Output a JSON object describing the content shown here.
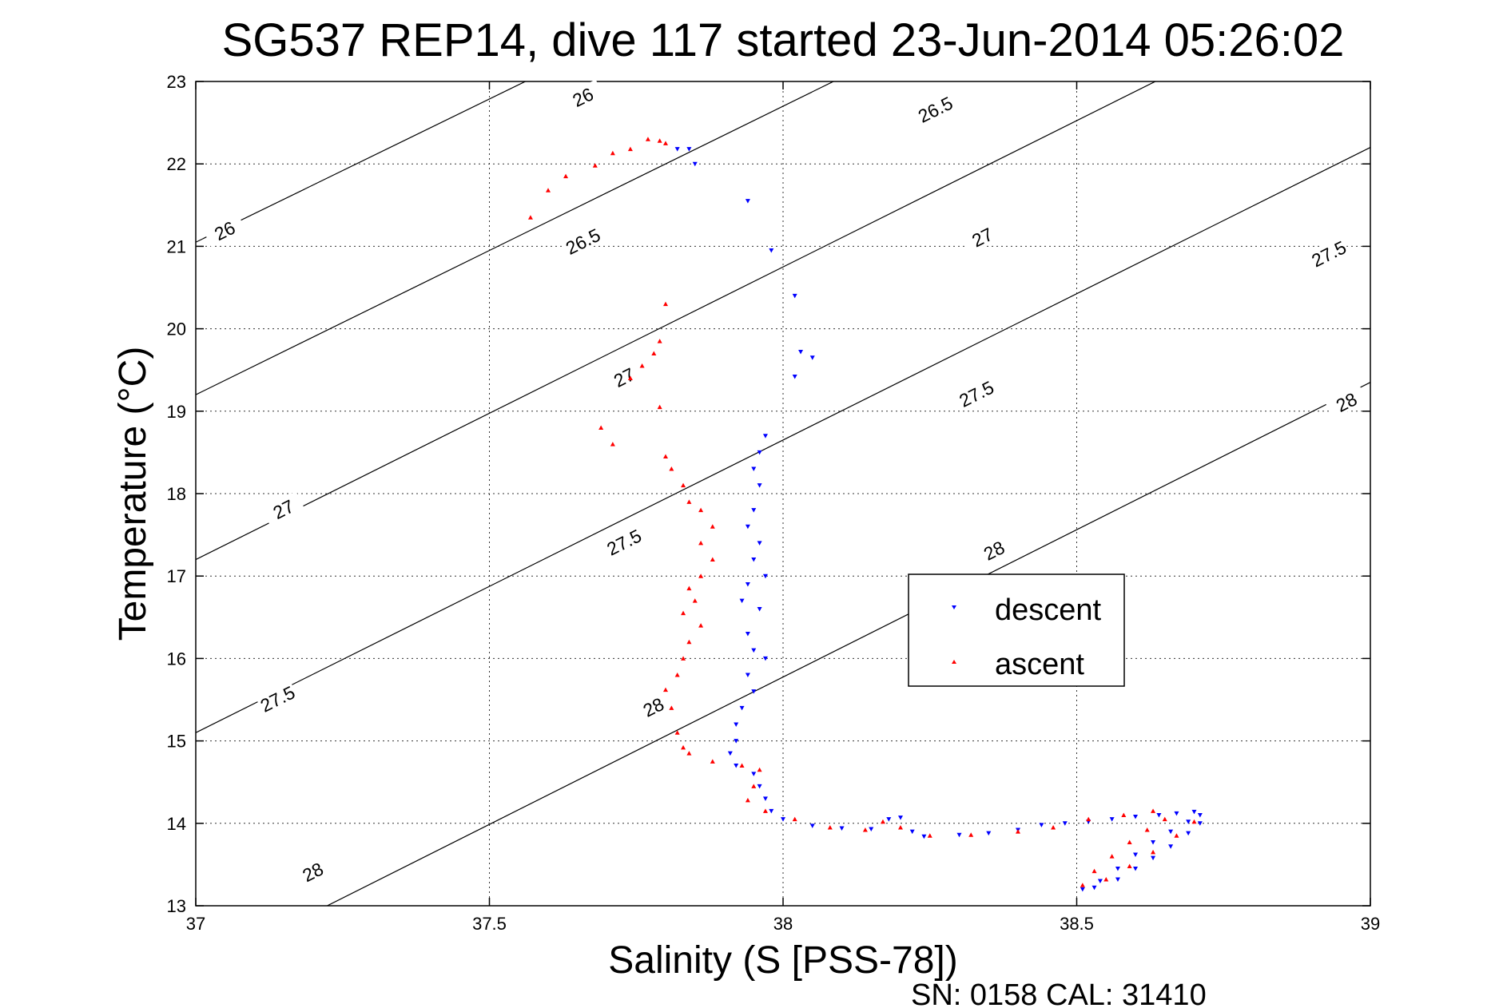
{
  "chart_data": {
    "type": "scatter",
    "title": "SG537 REP14, dive 117 started 23-Jun-2014 05:26:02",
    "xlabel": "Salinity (S [PSS-78])",
    "ylabel": "Temperature (°C)",
    "xlim": [
      37,
      39
    ],
    "ylim": [
      13,
      23
    ],
    "xticks": [
      "37",
      "37.5",
      "38",
      "38.5",
      "39"
    ],
    "yticks": [
      "13",
      "14",
      "15",
      "16",
      "17",
      "18",
      "19",
      "20",
      "21",
      "22",
      "23"
    ],
    "grid": true,
    "legend_position": "center-right",
    "footer": "SN: 0158  CAL: 31410",
    "density_contours": [
      {
        "label": "26",
        "line": [
          [
            37.0,
            21.05
          ],
          [
            39.0,
            28.0
          ]
        ],
        "labels_at": [
          [
            37.05,
            21.18
          ],
          [
            37.66,
            22.8
          ]
        ]
      },
      {
        "label": "26.5",
        "line": [
          [
            37.0,
            19.2
          ],
          [
            39.0,
            26.2
          ]
        ],
        "labels_at": [
          [
            37.66,
            21.05
          ],
          [
            38.26,
            22.65
          ]
        ]
      },
      {
        "label": "27",
        "line": [
          [
            37.0,
            17.2
          ],
          [
            39.0,
            24.3
          ]
        ],
        "labels_at": [
          [
            37.15,
            17.8
          ],
          [
            37.73,
            19.4
          ],
          [
            38.34,
            21.1
          ]
        ]
      },
      {
        "label": "27.5",
        "line": [
          [
            37.0,
            15.1
          ],
          [
            39.0,
            22.2
          ]
        ],
        "labels_at": [
          [
            37.14,
            15.5
          ],
          [
            37.73,
            17.4
          ],
          [
            38.33,
            19.2
          ],
          [
            38.93,
            20.9
          ]
        ]
      },
      {
        "label": "28",
        "line": [
          [
            37.0,
            12.2
          ],
          [
            39.0,
            19.35
          ]
        ],
        "labels_at": [
          [
            37.2,
            13.4
          ],
          [
            37.78,
            15.4
          ],
          [
            38.36,
            17.3
          ],
          [
            38.96,
            19.1
          ]
        ]
      }
    ],
    "series": [
      {
        "name": "descent",
        "color": "#0000ff",
        "marker": "triangle-down",
        "points": [
          [
            37.82,
            22.18
          ],
          [
            37.84,
            22.18
          ],
          [
            37.85,
            22.0
          ],
          [
            37.94,
            21.55
          ],
          [
            37.98,
            20.95
          ],
          [
            38.02,
            20.4
          ],
          [
            38.03,
            19.72
          ],
          [
            38.05,
            19.65
          ],
          [
            38.02,
            19.42
          ],
          [
            37.97,
            18.7
          ],
          [
            37.96,
            18.5
          ],
          [
            37.95,
            18.3
          ],
          [
            37.96,
            18.1
          ],
          [
            37.95,
            17.8
          ],
          [
            37.94,
            17.6
          ],
          [
            37.96,
            17.4
          ],
          [
            37.95,
            17.2
          ],
          [
            37.97,
            17.0
          ],
          [
            37.94,
            16.9
          ],
          [
            37.93,
            16.7
          ],
          [
            37.96,
            16.6
          ],
          [
            37.94,
            16.3
          ],
          [
            37.95,
            16.1
          ],
          [
            37.97,
            16.0
          ],
          [
            37.94,
            15.8
          ],
          [
            37.95,
            15.6
          ],
          [
            37.93,
            15.4
          ],
          [
            37.92,
            15.2
          ],
          [
            37.92,
            15.0
          ],
          [
            37.91,
            14.85
          ],
          [
            37.92,
            14.7
          ],
          [
            37.95,
            14.6
          ],
          [
            37.96,
            14.45
          ],
          [
            37.97,
            14.3
          ],
          [
            37.98,
            14.15
          ],
          [
            38.0,
            14.05
          ],
          [
            38.05,
            13.97
          ],
          [
            38.1,
            13.94
          ],
          [
            38.15,
            13.93
          ],
          [
            38.18,
            14.05
          ],
          [
            38.2,
            14.07
          ],
          [
            38.22,
            13.9
          ],
          [
            38.24,
            13.84
          ],
          [
            38.3,
            13.86
          ],
          [
            38.35,
            13.88
          ],
          [
            38.4,
            13.92
          ],
          [
            38.44,
            13.98
          ],
          [
            38.48,
            14.0
          ],
          [
            38.52,
            14.02
          ],
          [
            38.56,
            14.05
          ],
          [
            38.6,
            14.08
          ],
          [
            38.64,
            14.1
          ],
          [
            38.67,
            14.12
          ],
          [
            38.7,
            14.14
          ],
          [
            38.71,
            14.1
          ],
          [
            38.69,
            14.02
          ],
          [
            38.66,
            13.9
          ],
          [
            38.63,
            13.77
          ],
          [
            38.6,
            13.62
          ],
          [
            38.57,
            13.45
          ],
          [
            38.54,
            13.3
          ],
          [
            38.51,
            13.2
          ],
          [
            38.53,
            13.22
          ],
          [
            38.57,
            13.32
          ],
          [
            38.6,
            13.45
          ],
          [
            38.63,
            13.58
          ],
          [
            38.66,
            13.72
          ],
          [
            38.69,
            13.88
          ],
          [
            38.71,
            14.0
          ]
        ]
      },
      {
        "name": "ascent",
        "color": "#ff0000",
        "marker": "triangle-up",
        "points": [
          [
            37.57,
            21.35
          ],
          [
            37.6,
            21.68
          ],
          [
            37.63,
            21.85
          ],
          [
            37.68,
            21.98
          ],
          [
            37.71,
            22.13
          ],
          [
            37.74,
            22.18
          ],
          [
            37.77,
            22.3
          ],
          [
            37.79,
            22.28
          ],
          [
            37.8,
            22.25
          ],
          [
            37.8,
            20.3
          ],
          [
            37.79,
            19.85
          ],
          [
            37.78,
            19.7
          ],
          [
            37.76,
            19.55
          ],
          [
            37.74,
            19.4
          ],
          [
            37.79,
            19.05
          ],
          [
            37.69,
            18.8
          ],
          [
            37.71,
            18.6
          ],
          [
            37.8,
            18.45
          ],
          [
            37.81,
            18.3
          ],
          [
            37.83,
            18.1
          ],
          [
            37.84,
            17.9
          ],
          [
            37.86,
            17.8
          ],
          [
            37.88,
            17.6
          ],
          [
            37.86,
            17.4
          ],
          [
            37.88,
            17.2
          ],
          [
            37.86,
            17.0
          ],
          [
            37.84,
            16.85
          ],
          [
            37.85,
            16.7
          ],
          [
            37.83,
            16.55
          ],
          [
            37.86,
            16.4
          ],
          [
            37.84,
            16.2
          ],
          [
            37.83,
            16.0
          ],
          [
            37.82,
            15.8
          ],
          [
            37.8,
            15.62
          ],
          [
            37.81,
            15.4
          ],
          [
            37.82,
            15.1
          ],
          [
            37.83,
            14.92
          ],
          [
            37.84,
            14.85
          ],
          [
            37.88,
            14.75
          ],
          [
            37.93,
            14.7
          ],
          [
            37.96,
            14.65
          ],
          [
            37.95,
            14.45
          ],
          [
            37.94,
            14.28
          ],
          [
            37.97,
            14.15
          ],
          [
            38.02,
            14.05
          ],
          [
            38.08,
            13.95
          ],
          [
            38.14,
            13.92
          ],
          [
            38.17,
            14.02
          ],
          [
            38.2,
            13.95
          ],
          [
            38.25,
            13.85
          ],
          [
            38.32,
            13.86
          ],
          [
            38.4,
            13.9
          ],
          [
            38.46,
            13.95
          ],
          [
            38.52,
            14.05
          ],
          [
            38.58,
            14.1
          ],
          [
            38.63,
            14.15
          ],
          [
            38.65,
            14.05
          ],
          [
            38.62,
            13.92
          ],
          [
            38.59,
            13.77
          ],
          [
            38.56,
            13.6
          ],
          [
            38.53,
            13.42
          ],
          [
            38.51,
            13.25
          ],
          [
            38.55,
            13.32
          ],
          [
            38.59,
            13.48
          ],
          [
            38.63,
            13.65
          ],
          [
            38.67,
            13.85
          ],
          [
            38.7,
            14.02
          ]
        ]
      }
    ]
  }
}
